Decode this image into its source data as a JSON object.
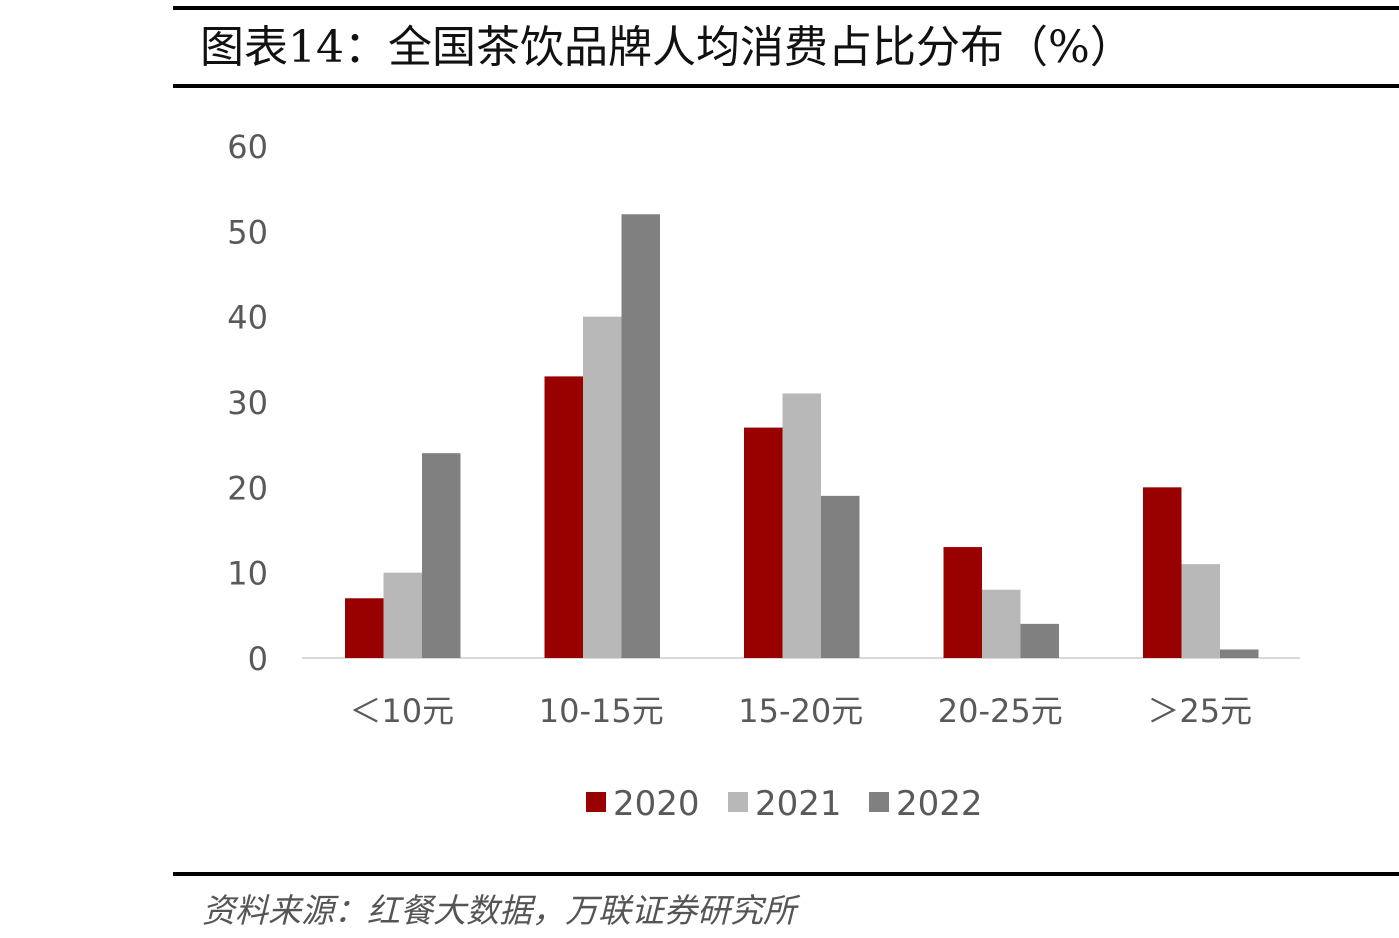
{
  "header": {
    "title": "图表14：全国茶饮品牌人均消费占比分布（%）"
  },
  "footer": {
    "source": "资料来源：红餐大数据，万联证券研究所"
  },
  "chart_data": {
    "type": "bar",
    "title": "",
    "xlabel": "",
    "ylabel": "",
    "categories": [
      "＜10元",
      "10-15元",
      "15-20元",
      "20-25元",
      "＞25元"
    ],
    "series": [
      {
        "name": "2020",
        "color": "#990000",
        "values": [
          7,
          33,
          27,
          13,
          20
        ]
      },
      {
        "name": "2021",
        "color": "#b8b8b8",
        "values": [
          10,
          40,
          31,
          8,
          11
        ]
      },
      {
        "name": "2022",
        "color": "#808080",
        "values": [
          24,
          52,
          19,
          4,
          1
        ]
      }
    ],
    "ylim": [
      0,
      60
    ],
    "yticks": [
      0,
      10,
      20,
      30,
      40,
      50,
      60
    ],
    "grid": false,
    "legend": "bottom"
  }
}
